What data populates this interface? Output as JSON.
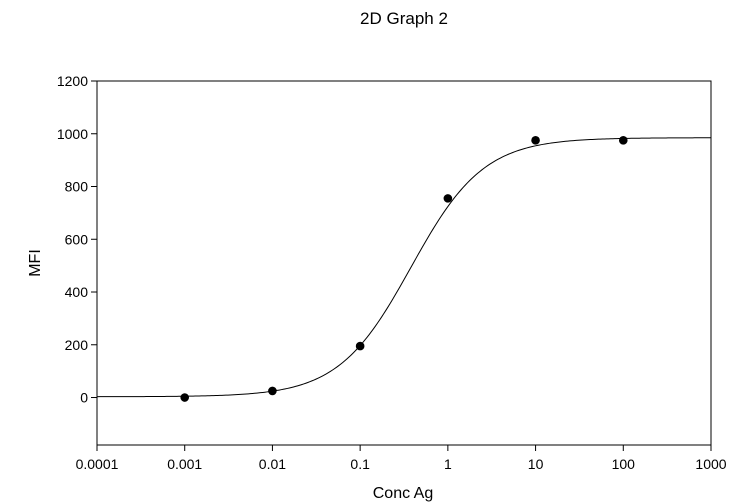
{
  "chart_data": {
    "type": "scatter",
    "title": "2D Graph 2",
    "xlabel": "Conc Ag",
    "ylabel": "MFI",
    "x_scale": "log",
    "xlim": [
      0.0001,
      1000
    ],
    "ylim": [
      -180,
      1200
    ],
    "x_ticks": [
      0.0001,
      0.001,
      0.01,
      0.1,
      1,
      10,
      100,
      1000
    ],
    "x_tick_labels": [
      "0.0001",
      "0.001",
      "0.01",
      "0.1",
      "1",
      "10",
      "100",
      "1000"
    ],
    "y_ticks": [
      0,
      200,
      400,
      600,
      800,
      1000,
      1200
    ],
    "y_tick_labels": [
      "0",
      "200",
      "400",
      "600",
      "800",
      "1000",
      "1200"
    ],
    "grid": false,
    "series": [
      {
        "marker": "filled-circle",
        "points": [
          {
            "x": 0.001,
            "y": 0
          },
          {
            "x": 0.01,
            "y": 25
          },
          {
            "x": 0.1,
            "y": 195
          },
          {
            "x": 1,
            "y": 755
          },
          {
            "x": 10,
            "y": 975
          },
          {
            "x": 100,
            "y": 975
          }
        ]
      }
    ],
    "fit_curve": {
      "kind": "four-parameter logistic",
      "bottom": 3,
      "top": 985,
      "ec50": 0.38,
      "hill": 1.05
    },
    "colors": {
      "axis": "#000000",
      "marker": "#000000",
      "curve": "#000000",
      "background": "#ffffff"
    }
  }
}
